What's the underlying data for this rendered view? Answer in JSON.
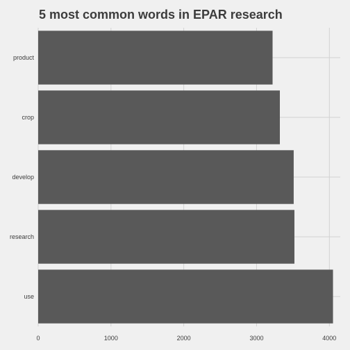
{
  "chart_data": {
    "type": "bar",
    "orientation": "horizontal",
    "title": "5 most common words in EPAR research",
    "xlabel": "",
    "ylabel": "",
    "categories": [
      "use",
      "research",
      "develop",
      "crop",
      "product"
    ],
    "values": [
      4050,
      3520,
      3510,
      3320,
      3220
    ],
    "xlim": [
      0,
      4150
    ],
    "xticks": [
      0,
      1000,
      2000,
      3000,
      4000
    ],
    "grid": true,
    "legend": "none",
    "bar_color": "#595959",
    "background_color": "#f0f0f0",
    "grid_color": "#d2d2d2"
  }
}
